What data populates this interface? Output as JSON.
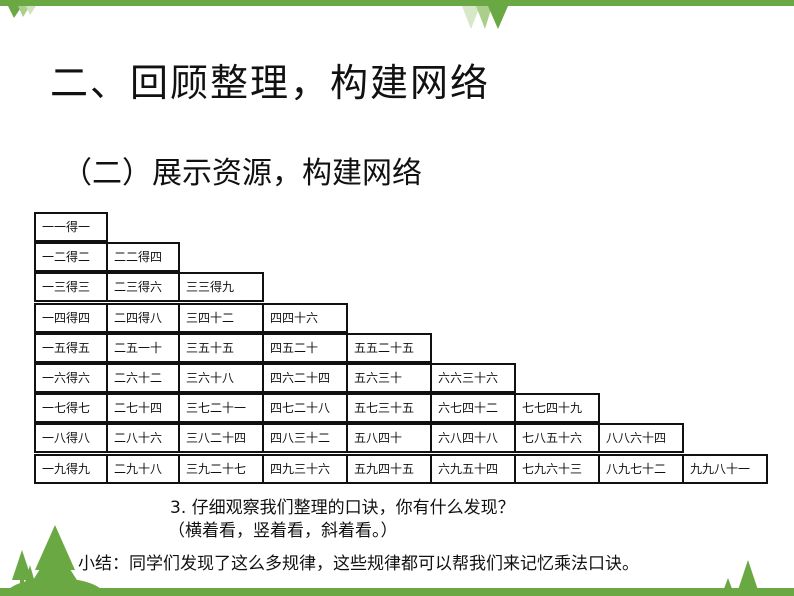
{
  "title": "二、回顾整理，构建网络",
  "subtitle": "（二）展示资源，构建网络",
  "table": [
    [
      "一一得一"
    ],
    [
      "一二得二",
      "二二得四"
    ],
    [
      "一三得三",
      "二三得六",
      "三三得九"
    ],
    [
      "一四得四",
      "二四得八",
      "三四十二",
      "四四十六"
    ],
    [
      "一五得五",
      "二五一十",
      "三五十五",
      "四五二十",
      "五五二十五"
    ],
    [
      "一六得六",
      "二六十二",
      "三六十八",
      "四六二十四",
      "五六三十",
      "六六三十六"
    ],
    [
      "一七得七",
      "二七十四",
      "三七二十一",
      "四七二十八",
      "五七三十五",
      "六七四十二",
      "七七四十九"
    ],
    [
      "一八得八",
      "二八十六",
      "三八二十四",
      "四八三十二",
      "五八四十",
      "六八四十八",
      "七八五十六",
      "八八六十四"
    ],
    [
      "一九得九",
      "二九十八",
      "三九二十七",
      "四九三十六",
      "五九四十五",
      "六九五十四",
      "七九六十三",
      "八九七十二",
      "九九八十一"
    ]
  ],
  "question": "3. 仔细观察我们整理的口诀，你有什么发现？",
  "hint": "（横着看，竖着看，斜着看。）",
  "summary": "小结：同学们发现了这么多规律，这些规律都可以帮我们来记忆乘法口诀。",
  "colors": {
    "accent": "#6aa843",
    "accent_light": "#a9cf8a"
  }
}
